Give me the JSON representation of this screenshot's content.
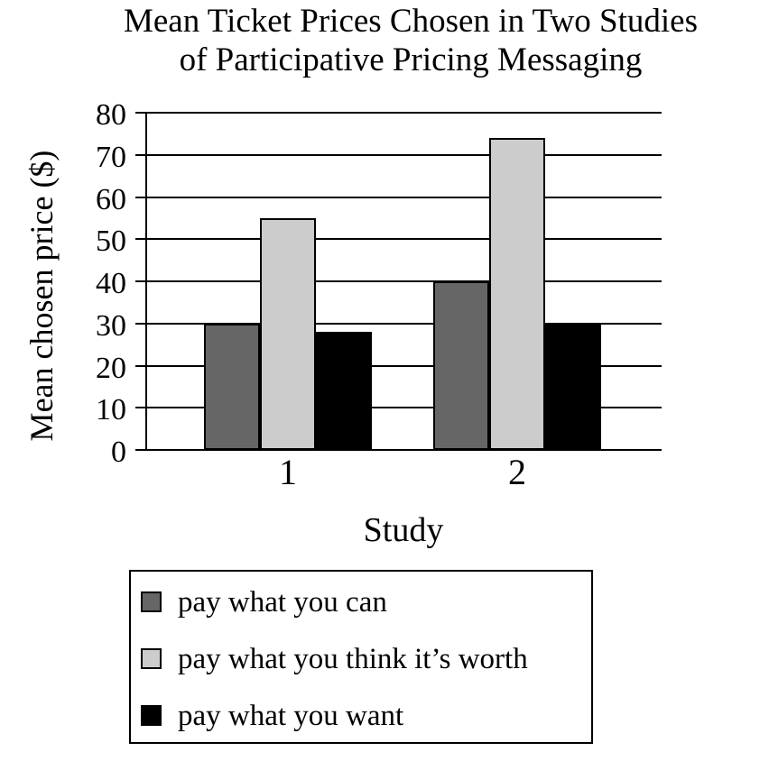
{
  "title": {
    "line1": "Mean Ticket Prices Chosen in Two Studies",
    "line2": "of Participative Pricing Messaging"
  },
  "y_axis": {
    "label": "Mean chosen price ($)",
    "tick_labels": [
      "80",
      "70",
      "60",
      "50",
      "40",
      "30",
      "20",
      "10",
      "0"
    ]
  },
  "x_axis": {
    "title": "Study",
    "category_labels": [
      "1",
      "2"
    ]
  },
  "legend": {
    "items": [
      {
        "label": "pay what you can",
        "color": "#666666"
      },
      {
        "label": "pay what you think it’s worth",
        "color": "#cccccc"
      },
      {
        "label": "pay what you want",
        "color": "#000000"
      }
    ]
  },
  "colors": {
    "background": "#ffffff",
    "axis": "#000000",
    "bar_border": "#000000"
  },
  "chart_data": {
    "type": "bar",
    "title": "Mean Ticket Prices Chosen in Two Studies of Participative Pricing Messaging",
    "categories": [
      "1",
      "2"
    ],
    "series": [
      {
        "name": "pay what you can",
        "color": "#666666",
        "values": [
          30,
          40
        ]
      },
      {
        "name": "pay what you think it’s worth",
        "color": "#cccccc",
        "values": [
          55,
          74
        ]
      },
      {
        "name": "pay what you want",
        "color": "#000000",
        "values": [
          28,
          30
        ]
      }
    ],
    "xlabel": "Study",
    "ylabel": "Mean chosen price ($)",
    "ylim": [
      0,
      80
    ],
    "ytick_step": 10,
    "grid": true,
    "legend_position": "below-left"
  }
}
